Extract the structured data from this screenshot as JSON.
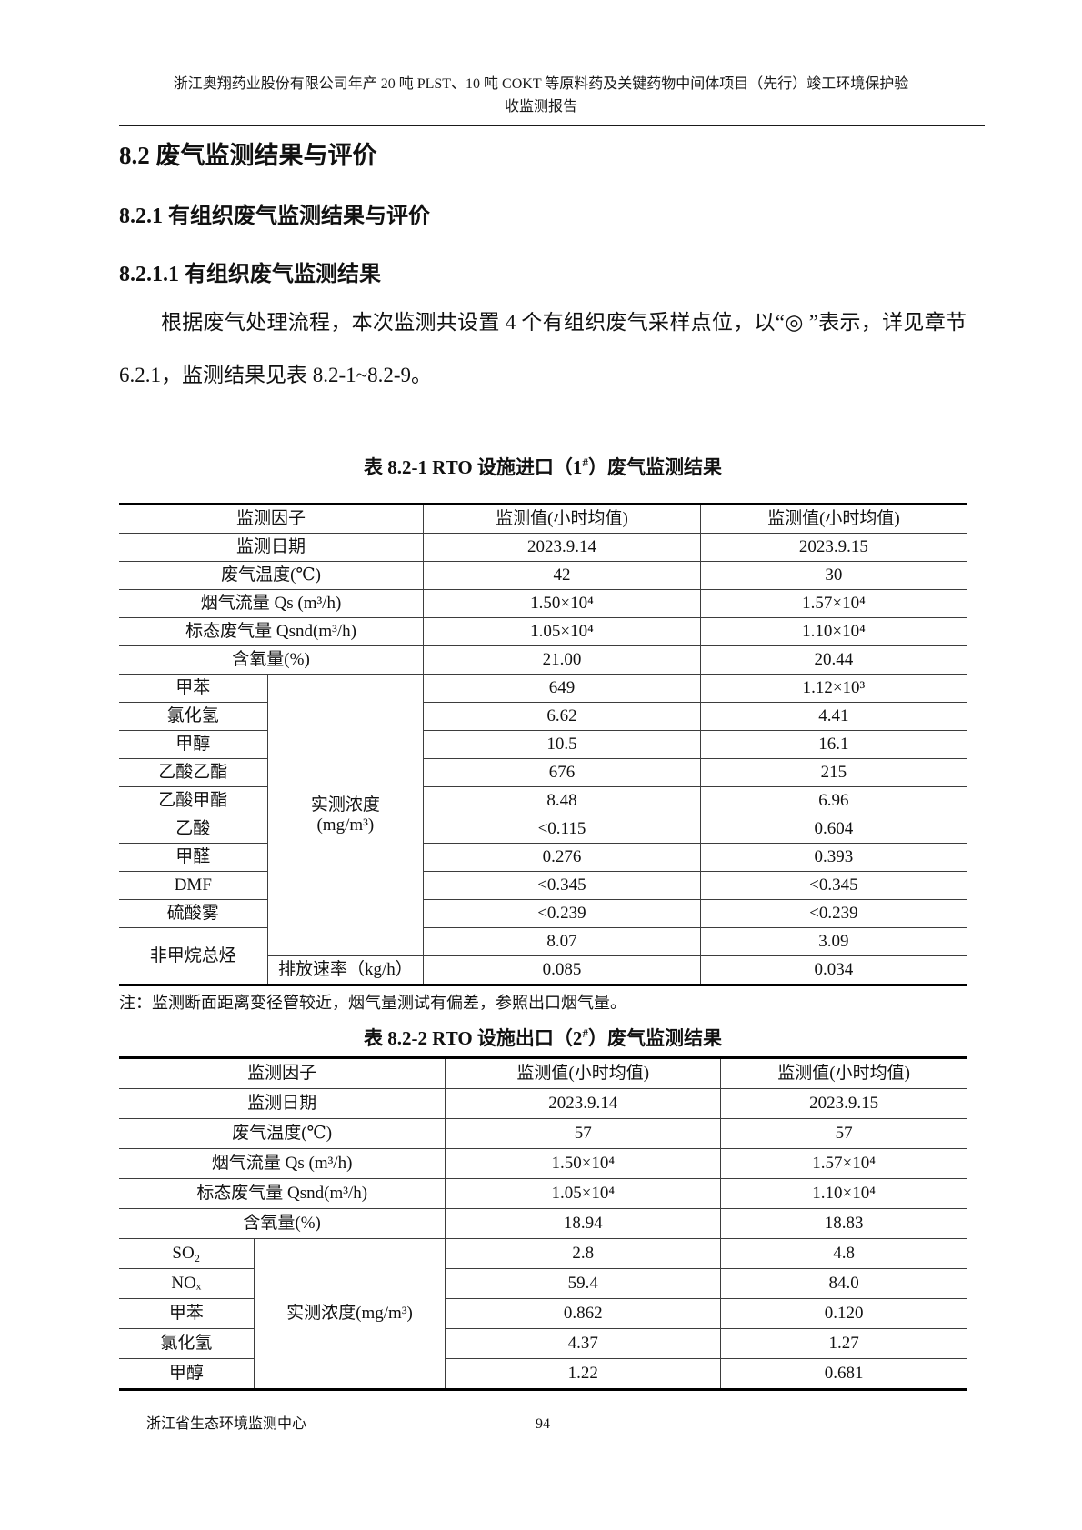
{
  "header": {
    "line1": "浙江奥翔药业股份有限公司年产 20 吨 PLST、10 吨 COKT 等原料药及关键药物中间体项目（先行）竣工环境保护验",
    "line2": "收监测报告"
  },
  "headings": {
    "h1": "8.2  废气监测结果与评价",
    "h2": "8.2.1  有组织废气监测结果与评价",
    "h3": "8.2.1.1  有组织废气监测结果"
  },
  "paragraph": {
    "text": "根据废气处理流程，本次监测共设置 4 个有组织废气采样点位，以“◎ ”表示，详见章节 6.2.1，监测结果见表 8.2-1~8.2-9。"
  },
  "table1": {
    "title": {
      "pre": "表 8.2-1 RTO 设施进口（1",
      "sup": "#",
      "post": "）废气监测结果"
    },
    "header": {
      "factor": "监测因子",
      "v1": "监测值(小时均值)",
      "v2": "监测值(小时均值)"
    },
    "full_rows": [
      {
        "label": "监测日期",
        "v1": "2023.9.14",
        "v2": "2023.9.15"
      },
      {
        "label": "废气温度(℃)",
        "v1": "42",
        "v2": "30"
      },
      {
        "label": "烟气流量 Qs (m³/h)",
        "v1": "1.50×10⁴",
        "v2": "1.57×10⁴"
      },
      {
        "label": "标态废气量 Qsnd(m³/h)",
        "v1": "1.05×10⁴",
        "v2": "1.10×10⁴"
      },
      {
        "label": "含氧量(%)",
        "v1": "21.00",
        "v2": "20.44"
      }
    ],
    "group_label_line1": "实测浓度",
    "group_label_line2": "(mg/m³)",
    "pollutant_rows": [
      {
        "label": "甲苯",
        "v1": "649",
        "v2": "1.12×10³"
      },
      {
        "label": "氯化氢",
        "v1": "6.62",
        "v2": "4.41"
      },
      {
        "label": "甲醇",
        "v1": "10.5",
        "v2": "16.1"
      },
      {
        "label": "乙酸乙酯",
        "v1": "676",
        "v2": "215"
      },
      {
        "label": "乙酸甲酯",
        "v1": "8.48",
        "v2": "6.96"
      },
      {
        "label": "乙酸",
        "v1": "<0.115",
        "v2": "0.604"
      },
      {
        "label": "甲醛",
        "v1": "0.276",
        "v2": "0.393"
      },
      {
        "label": "DMF",
        "v1": "<0.345",
        "v2": "<0.345"
      },
      {
        "label": "硫酸雾",
        "v1": "<0.239",
        "v2": "<0.239"
      }
    ],
    "nmhc": {
      "label": "非甲烷总烃",
      "conc_v1": "8.07",
      "conc_v2": "3.09",
      "rate_label": "排放速率（kg/h）",
      "rate_v1": "0.085",
      "rate_v2": "0.034"
    },
    "note": "注：监测断面距离变径管较近，烟气量测试有偏差，参照出口烟气量。"
  },
  "table2": {
    "title": {
      "pre": "表 8.2-2 RTO 设施出口（2",
      "sup": "#",
      "post": "）废气监测结果"
    },
    "header": {
      "factor": "监测因子",
      "v1": "监测值(小时均值)",
      "v2": "监测值(小时均值)"
    },
    "full_rows": [
      {
        "label": "监测日期",
        "v1": "2023.9.14",
        "v2": "2023.9.15"
      },
      {
        "label": "废气温度(℃)",
        "v1": "57",
        "v2": "57"
      },
      {
        "label": "烟气流量 Qs (m³/h)",
        "v1": "1.50×10⁴",
        "v2": "1.57×10⁴"
      },
      {
        "label": "标态废气量 Qsnd(m³/h)",
        "v1": "1.05×10⁴",
        "v2": "1.10×10⁴"
      },
      {
        "label": "含氧量(%)",
        "v1": "18.94",
        "v2": "18.83"
      }
    ],
    "group_label": "实测浓度(mg/m³)",
    "pollutant_rows": [
      {
        "label": "SO₂",
        "v1": "2.8",
        "v2": "4.8"
      },
      {
        "label": "NOₓ",
        "v1": "59.4",
        "v2": "84.0"
      },
      {
        "label": "甲苯",
        "v1": "0.862",
        "v2": "0.120"
      },
      {
        "label": "氯化氢",
        "v1": "4.37",
        "v2": "1.27"
      },
      {
        "label": "甲醇",
        "v1": "1.22",
        "v2": "0.681"
      }
    ]
  },
  "footer": {
    "org": "浙江省生态环境监测中心",
    "page": "94"
  }
}
